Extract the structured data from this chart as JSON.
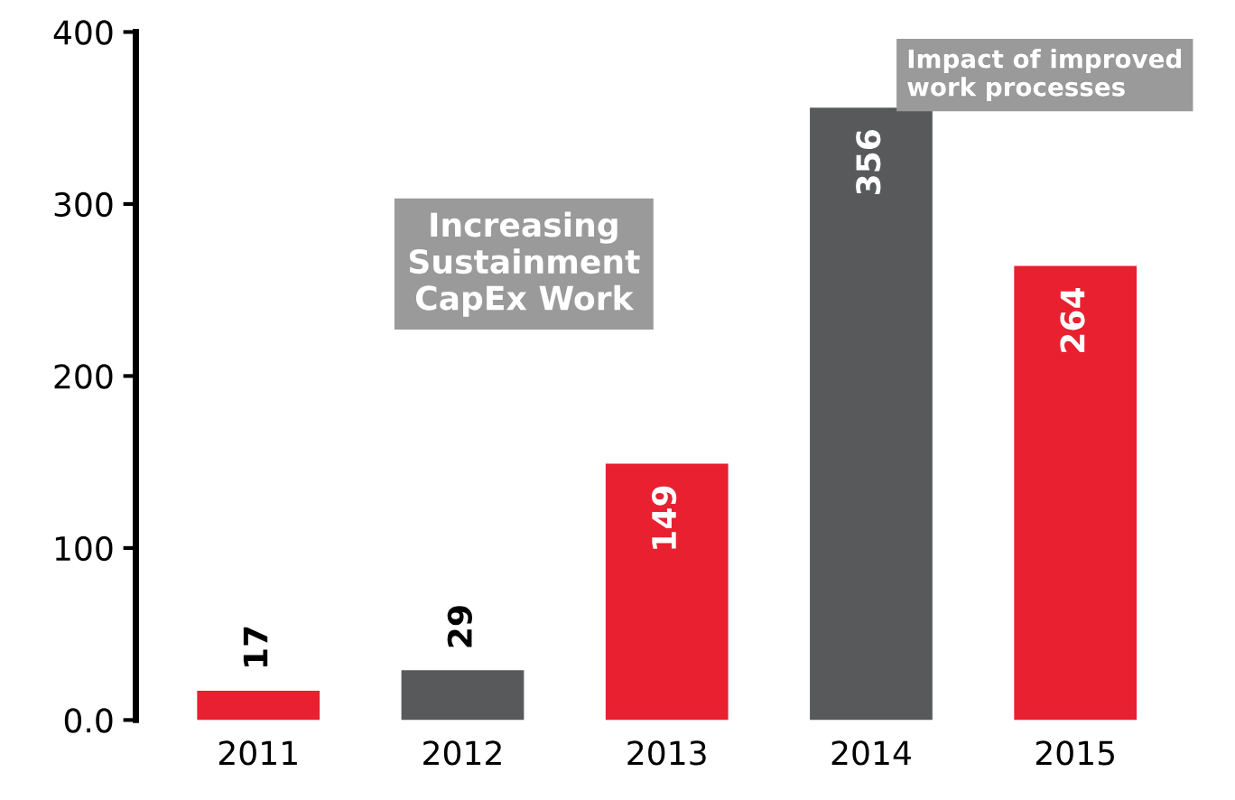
{
  "chart_data": {
    "type": "bar",
    "categories": [
      "2011",
      "2012",
      "2013",
      "2014",
      "2015"
    ],
    "values": [
      17,
      29,
      149,
      356,
      264
    ],
    "colors": [
      "#e8202f",
      "#58595b",
      "#e8202f",
      "#58595b",
      "#e8202f"
    ],
    "ylim": [
      0,
      400
    ],
    "yticks": [
      {
        "value": 0,
        "label": "0.0"
      },
      100,
      200,
      300,
      400
    ],
    "data_labels": true,
    "grid": false,
    "annotations": [
      "Increasing\nSustainment\nCapEx Work",
      "Impact of improved\nwork processes"
    ]
  }
}
